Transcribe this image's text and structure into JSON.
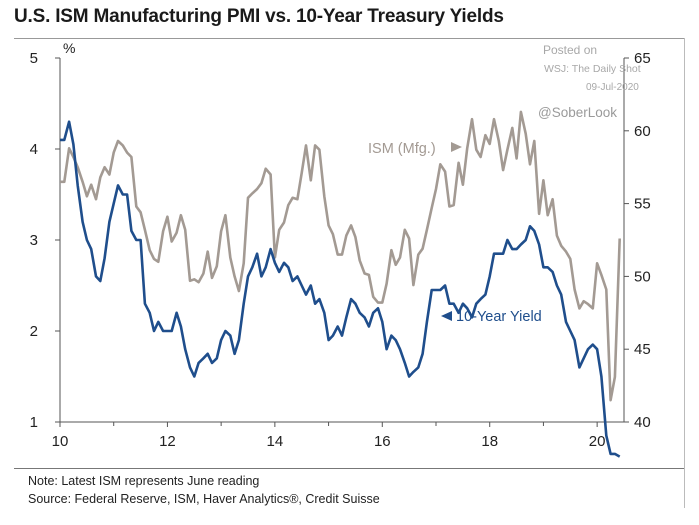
{
  "title": "U.S. ISM Manufacturing PMI vs. 10-Year Treasury Yields",
  "notes": {
    "note": "Note: Latest ISM represents June reading",
    "source": "Source: Federal Reserve, ISM, Haver Analytics®, Credit Suisse"
  },
  "watermark": {
    "posted": "Posted on",
    "outlet": "WSJ: The Daily Shot",
    "date": "09-Jul-2020",
    "handle": "@SoberLook"
  },
  "colors": {
    "yield": "#1f4e8c",
    "ism": "#a39a93",
    "axis": "#555555"
  },
  "chart_data": {
    "type": "line",
    "x_ticks": [
      "10",
      "12",
      "14",
      "16",
      "18",
      "20"
    ],
    "x_range": [
      2010,
      2020.5
    ],
    "left_axis": {
      "unit_label": "%",
      "range": [
        1,
        5
      ],
      "ticks": [
        "1",
        "2",
        "3",
        "4",
        "5"
      ]
    },
    "right_axis": {
      "range": [
        40,
        65
      ],
      "ticks": [
        "40",
        "45",
        "50",
        "55",
        "60",
        "65"
      ]
    },
    "grid": false,
    "series": [
      {
        "name": "10-Year Yield",
        "axis": "left",
        "label_text": "10-Year  Yield",
        "x": [
          2010.0,
          2010.08,
          2010.17,
          2010.25,
          2010.33,
          2010.42,
          2010.5,
          2010.58,
          2010.67,
          2010.75,
          2010.83,
          2010.92,
          2011.0,
          2011.08,
          2011.17,
          2011.25,
          2011.33,
          2011.42,
          2011.5,
          2011.58,
          2011.67,
          2011.75,
          2011.83,
          2011.92,
          2012.0,
          2012.08,
          2012.17,
          2012.25,
          2012.33,
          2012.42,
          2012.5,
          2012.58,
          2012.67,
          2012.75,
          2012.83,
          2012.92,
          2013.0,
          2013.08,
          2013.17,
          2013.25,
          2013.33,
          2013.42,
          2013.5,
          2013.58,
          2013.67,
          2013.75,
          2013.83,
          2013.92,
          2014.0,
          2014.08,
          2014.17,
          2014.25,
          2014.33,
          2014.42,
          2014.5,
          2014.58,
          2014.67,
          2014.75,
          2014.83,
          2014.92,
          2015.0,
          2015.08,
          2015.17,
          2015.25,
          2015.33,
          2015.42,
          2015.5,
          2015.58,
          2015.67,
          2015.75,
          2015.83,
          2015.92,
          2016.0,
          2016.08,
          2016.17,
          2016.25,
          2016.33,
          2016.42,
          2016.5,
          2016.58,
          2016.67,
          2016.75,
          2016.83,
          2016.92,
          2017.0,
          2017.08,
          2017.17,
          2017.25,
          2017.33,
          2017.42,
          2017.5,
          2017.58,
          2017.67,
          2017.75,
          2017.83,
          2017.92,
          2018.0,
          2018.08,
          2018.17,
          2018.25,
          2018.33,
          2018.42,
          2018.5,
          2018.58,
          2018.67,
          2018.75,
          2018.83,
          2018.92,
          2019.0,
          2019.08,
          2019.17,
          2019.25,
          2019.33,
          2019.42,
          2019.5,
          2019.58,
          2019.67,
          2019.75,
          2019.83,
          2019.92,
          2020.0,
          2020.08,
          2020.17,
          2020.25,
          2020.33,
          2020.42
        ],
        "y": [
          4.1,
          4.1,
          4.3,
          4.05,
          3.6,
          3.2,
          3.0,
          2.9,
          2.6,
          2.55,
          2.8,
          3.2,
          3.4,
          3.6,
          3.5,
          3.5,
          3.1,
          3.0,
          3.0,
          2.3,
          2.2,
          2.0,
          2.1,
          2.0,
          2.0,
          2.0,
          2.2,
          2.05,
          1.8,
          1.6,
          1.5,
          1.65,
          1.7,
          1.75,
          1.65,
          1.7,
          1.9,
          2.0,
          1.95,
          1.75,
          1.9,
          2.3,
          2.6,
          2.7,
          2.85,
          2.6,
          2.7,
          2.9,
          2.75,
          2.65,
          2.75,
          2.7,
          2.55,
          2.6,
          2.5,
          2.4,
          2.5,
          2.3,
          2.35,
          2.2,
          1.9,
          1.95,
          2.05,
          1.95,
          2.15,
          2.35,
          2.3,
          2.2,
          2.15,
          2.05,
          2.2,
          2.25,
          2.1,
          1.8,
          1.95,
          1.9,
          1.8,
          1.65,
          1.5,
          1.55,
          1.6,
          1.75,
          2.1,
          2.45,
          2.45,
          2.45,
          2.5,
          2.3,
          2.3,
          2.2,
          2.3,
          2.25,
          2.15,
          2.3,
          2.35,
          2.4,
          2.6,
          2.85,
          2.85,
          2.85,
          3.0,
          2.9,
          2.9,
          2.95,
          3.0,
          3.15,
          3.1,
          2.95,
          2.7,
          2.7,
          2.65,
          2.5,
          2.4,
          2.1,
          2.0,
          1.9,
          1.6,
          1.7,
          1.8,
          1.85,
          1.8,
          1.5,
          0.85,
          0.65,
          0.65,
          0.62
        ]
      },
      {
        "name": "ISM (Mfg.)",
        "axis": "right",
        "label_text": "ISM (Mfg.)",
        "x": [
          2010.0,
          2010.08,
          2010.17,
          2010.25,
          2010.33,
          2010.42,
          2010.5,
          2010.58,
          2010.67,
          2010.75,
          2010.83,
          2010.92,
          2011.0,
          2011.08,
          2011.17,
          2011.25,
          2011.33,
          2011.42,
          2011.5,
          2011.58,
          2011.67,
          2011.75,
          2011.83,
          2011.92,
          2012.0,
          2012.08,
          2012.17,
          2012.25,
          2012.33,
          2012.42,
          2012.5,
          2012.58,
          2012.67,
          2012.75,
          2012.83,
          2012.92,
          2013.0,
          2013.08,
          2013.17,
          2013.25,
          2013.33,
          2013.42,
          2013.5,
          2013.58,
          2013.67,
          2013.75,
          2013.83,
          2013.92,
          2014.0,
          2014.08,
          2014.17,
          2014.25,
          2014.33,
          2014.42,
          2014.5,
          2014.58,
          2014.67,
          2014.75,
          2014.83,
          2014.92,
          2015.0,
          2015.08,
          2015.17,
          2015.25,
          2015.33,
          2015.42,
          2015.5,
          2015.58,
          2015.67,
          2015.75,
          2015.83,
          2015.92,
          2016.0,
          2016.08,
          2016.17,
          2016.25,
          2016.33,
          2016.42,
          2016.5,
          2016.58,
          2016.67,
          2016.75,
          2016.83,
          2016.92,
          2017.0,
          2017.08,
          2017.17,
          2017.25,
          2017.33,
          2017.42,
          2017.5,
          2017.58,
          2017.67,
          2017.75,
          2017.83,
          2017.92,
          2018.0,
          2018.08,
          2018.17,
          2018.25,
          2018.33,
          2018.42,
          2018.5,
          2018.58,
          2018.67,
          2018.75,
          2018.83,
          2018.92,
          2019.0,
          2019.08,
          2019.17,
          2019.25,
          2019.33,
          2019.42,
          2019.5,
          2019.58,
          2019.67,
          2019.75,
          2019.83,
          2019.92,
          2020.0,
          2020.08,
          2020.17,
          2020.25,
          2020.33,
          2020.42
        ],
        "y": [
          56.5,
          56.5,
          58.8,
          58.2,
          57.5,
          56.5,
          55.5,
          56.3,
          55.3,
          56.8,
          57.5,
          57.0,
          58.5,
          59.3,
          59.0,
          58.5,
          58.2,
          54.8,
          54.4,
          53.2,
          51.8,
          51.2,
          51.0,
          53.1,
          54.1,
          52.4,
          53.0,
          54.2,
          53.2,
          49.7,
          49.8,
          49.6,
          50.2,
          51.7,
          49.9,
          50.7,
          53.1,
          54.2,
          51.3,
          50.0,
          49.0,
          50.9,
          55.4,
          55.7,
          56.0,
          56.4,
          57.4,
          57.0,
          51.3,
          53.2,
          53.7,
          54.9,
          55.4,
          55.3,
          57.1,
          59.0,
          56.6,
          59.0,
          58.7,
          55.5,
          53.5,
          52.9,
          51.5,
          51.5,
          52.8,
          53.5,
          52.7,
          51.1,
          50.2,
          50.1,
          48.6,
          48.2,
          48.2,
          49.5,
          51.8,
          50.8,
          51.3,
          53.2,
          52.6,
          49.4,
          51.5,
          51.9,
          53.2,
          54.7,
          56.0,
          57.7,
          57.2,
          54.8,
          54.9,
          57.8,
          56.3,
          58.8,
          60.8,
          58.7,
          58.2,
          59.7,
          59.1,
          60.8,
          59.3,
          57.3,
          58.7,
          60.2,
          58.1,
          61.3,
          59.8,
          57.7,
          59.3,
          54.3,
          56.6,
          54.2,
          55.3,
          52.8,
          52.1,
          51.7,
          51.2,
          49.1,
          47.8,
          48.3,
          48.1,
          47.8,
          50.9,
          50.1,
          49.1,
          41.5,
          43.1,
          52.6
        ]
      }
    ]
  }
}
